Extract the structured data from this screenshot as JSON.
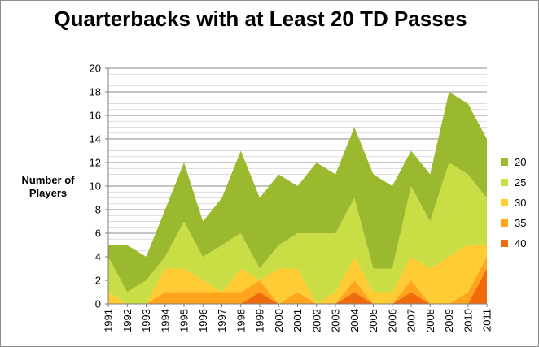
{
  "chart_data": {
    "type": "area",
    "stacked": true,
    "title": "Quarterbacks with at Least 20 TD Passes",
    "ylabel": "Number of Players",
    "xlabel": "",
    "ylim": [
      0,
      20
    ],
    "y_major_step": 2,
    "y_minor_step": 0.5,
    "grid": true,
    "legend_position": "right",
    "x": [
      1991,
      1992,
      1993,
      1994,
      1995,
      1996,
      1997,
      1998,
      1999,
      2000,
      2001,
      2002,
      2003,
      2004,
      2005,
      2006,
      2007,
      2008,
      2009,
      2010,
      2011
    ],
    "series": [
      {
        "name": "40",
        "color": "#f06b0c",
        "values": [
          0,
          0,
          0,
          0,
          0,
          0,
          0,
          0,
          1,
          0,
          0,
          0,
          0,
          1,
          0,
          0,
          1,
          0,
          0,
          0,
          3
        ]
      },
      {
        "name": "35",
        "color": "#ffa41c",
        "values": [
          0,
          0,
          0,
          1,
          1,
          1,
          1,
          1,
          1,
          0,
          1,
          0,
          0,
          1,
          0,
          0,
          1,
          0,
          0,
          1,
          1
        ]
      },
      {
        "name": "30",
        "color": "#ffcc33",
        "values": [
          1,
          0,
          0,
          2,
          2,
          1,
          0,
          2,
          0,
          3,
          2,
          0,
          1,
          2,
          1,
          1,
          2,
          3,
          4,
          4,
          1
        ]
      },
      {
        "name": "25",
        "color": "#c9dd45",
        "values": [
          3,
          1,
          2,
          1,
          4,
          2,
          4,
          3,
          1,
          2,
          3,
          6,
          5,
          5,
          2,
          2,
          6,
          4,
          8,
          6,
          4
        ]
      },
      {
        "name": "20",
        "color": "#9ab92e",
        "values": [
          1,
          4,
          2,
          4,
          5,
          3,
          4,
          7,
          6,
          6,
          4,
          6,
          5,
          6,
          8,
          7,
          3,
          4,
          6,
          6,
          5
        ]
      }
    ]
  },
  "legend_order": [
    "20",
    "25",
    "30",
    "35",
    "40"
  ]
}
